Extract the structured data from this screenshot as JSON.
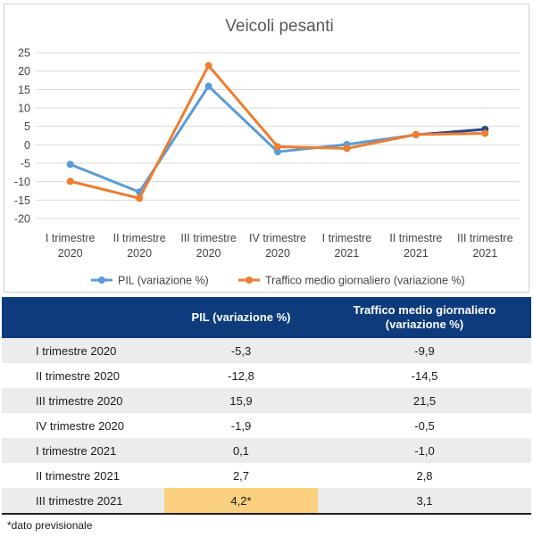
{
  "chart_data": {
    "type": "line",
    "title": "Veicoli pesanti",
    "categories": [
      [
        "I trimestre",
        "2020"
      ],
      [
        "II trimestre",
        "2020"
      ],
      [
        "III trimestre",
        "2020"
      ],
      [
        "IV trimestre",
        "2020"
      ],
      [
        "I trimestre",
        "2021"
      ],
      [
        "II trimestre",
        "2021"
      ],
      [
        "III trimestre",
        "2021"
      ]
    ],
    "ylim": [
      -20,
      25
    ],
    "yticks": [
      -20,
      -15,
      -10,
      -5,
      0,
      5,
      10,
      15,
      20,
      25
    ],
    "grid": true,
    "legend": "bottom",
    "series": [
      {
        "name": "PIL (variazione %)",
        "color": "#5b9bd5",
        "values": [
          -5.3,
          -12.8,
          15.9,
          -1.9,
          0.1,
          2.7,
          4.2
        ],
        "last_segment_color": "#2a4a8a"
      },
      {
        "name": "Traffico medio giornaliero (variazione %)",
        "color": "#ed7d31",
        "values": [
          -9.9,
          -14.5,
          21.5,
          -0.5,
          -1.0,
          2.8,
          3.1
        ]
      }
    ]
  },
  "table": {
    "header_bg": "#0d3b7c",
    "highlight_color": "#fbd07f",
    "headers": [
      "",
      "PIL (variazione %)",
      "Traffico medio giornaliero (variazione %)"
    ],
    "rows": [
      [
        "I trimestre 2020",
        "-5,3",
        "-9,9"
      ],
      [
        "II trimestre 2020",
        "-12,8",
        "-14,5"
      ],
      [
        "III trimestre 2020",
        "15,9",
        "21,5"
      ],
      [
        "IV trimestre 2020",
        "-1,9",
        "-0,5"
      ],
      [
        "I trimestre 2021",
        "0,1",
        "-1,0"
      ],
      [
        "II trimestre 2021",
        "2,7",
        "2,8"
      ],
      [
        "III trimestre 2021",
        "4,2*",
        "3,1"
      ]
    ]
  },
  "footnote": "*dato previsionale"
}
